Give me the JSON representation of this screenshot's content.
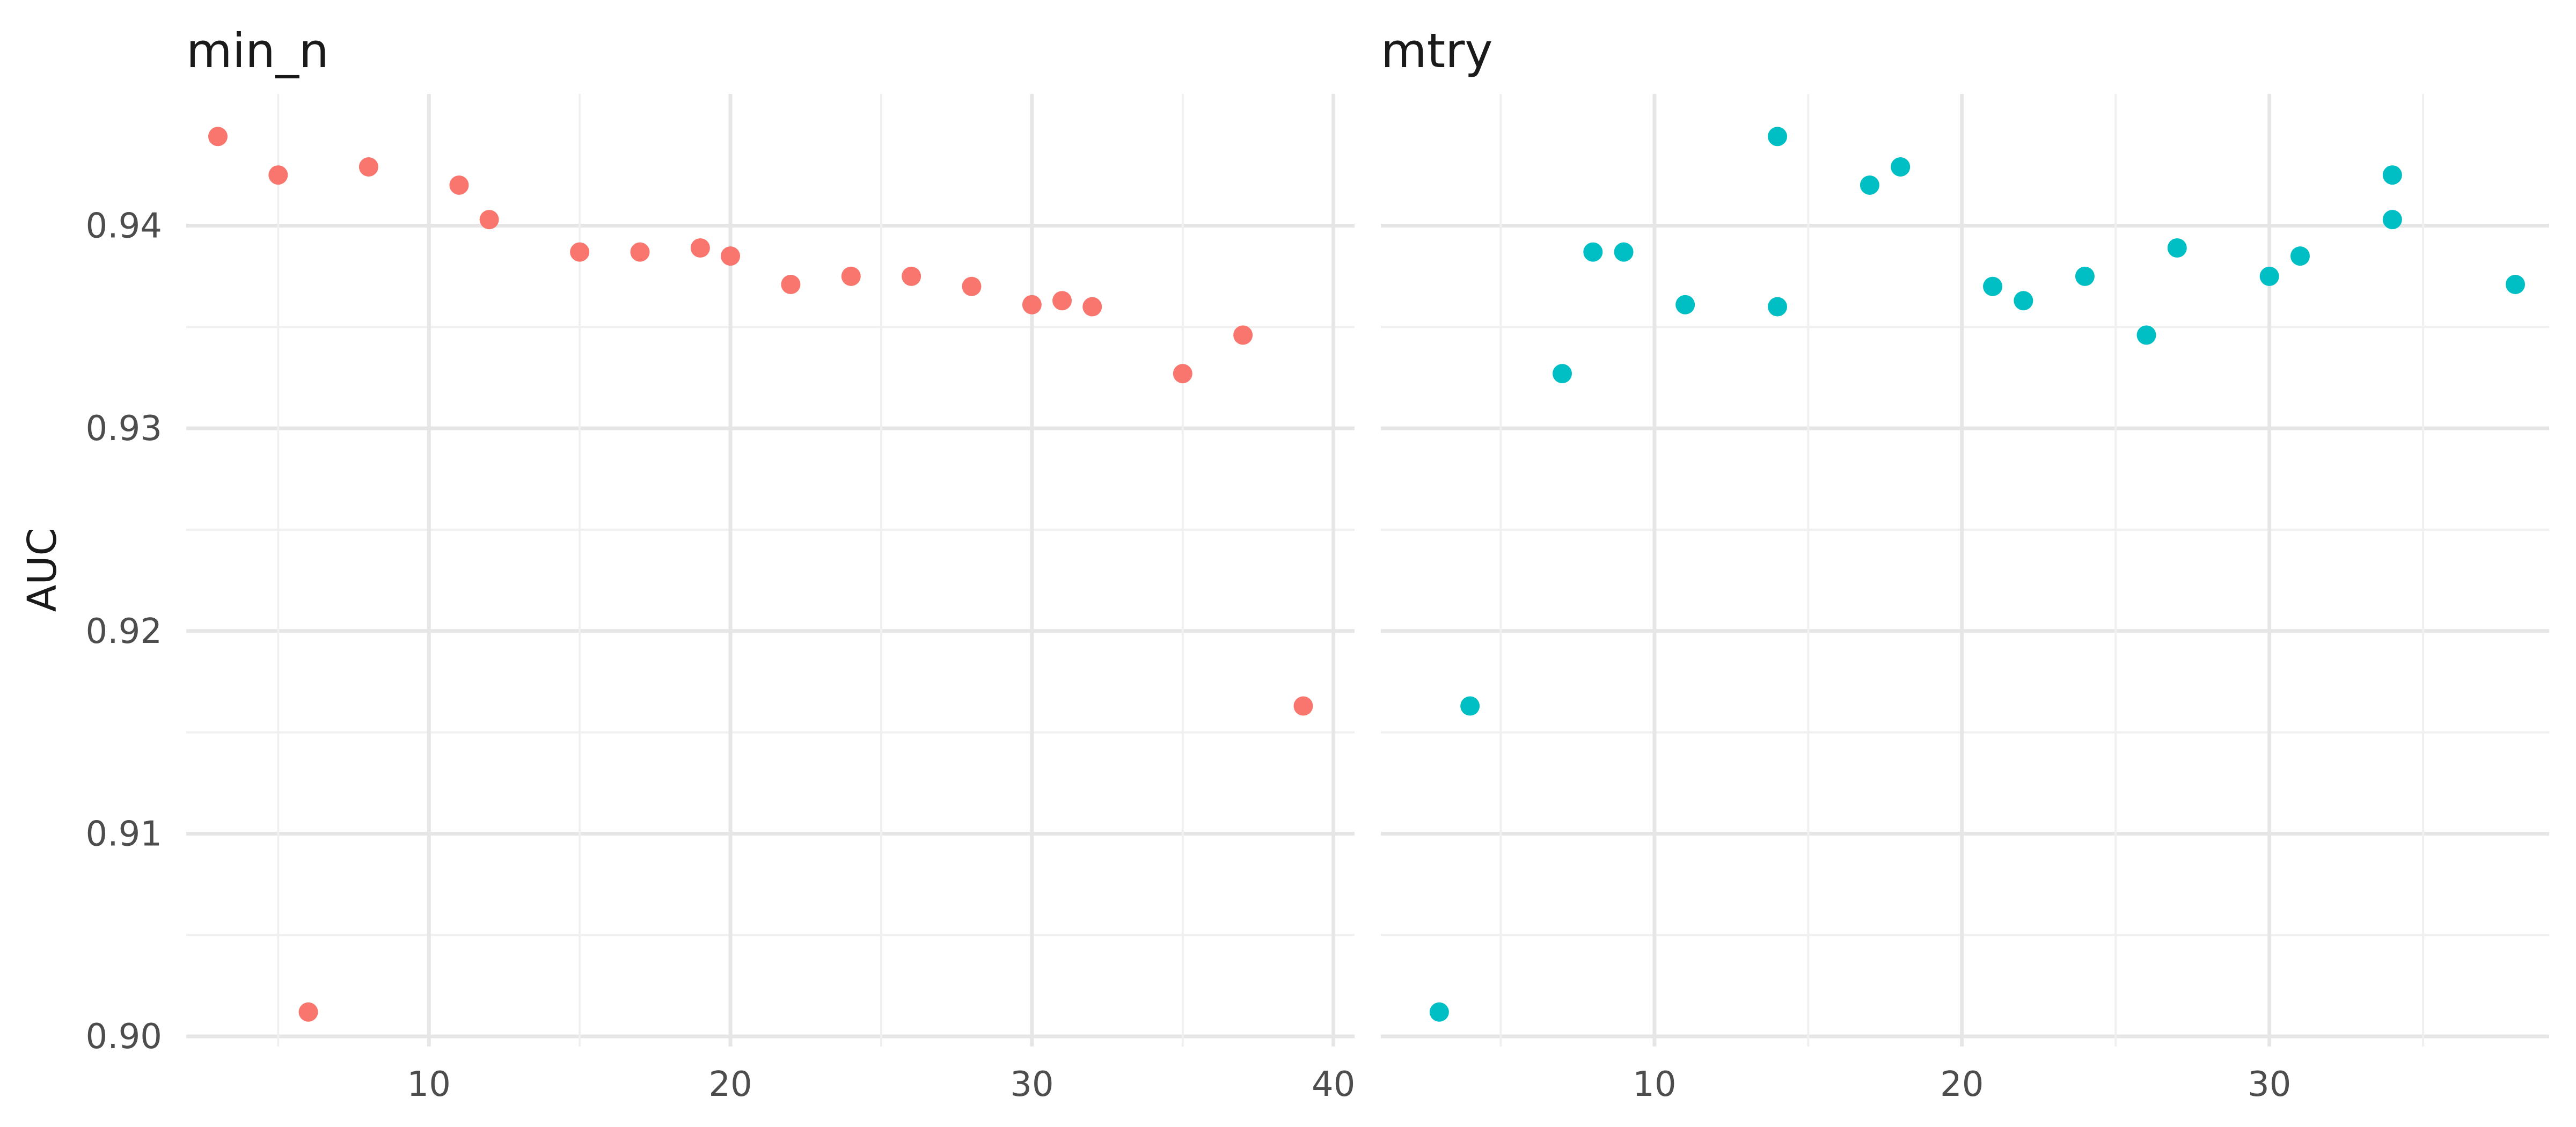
{
  "chart_data": {
    "type": "scatter",
    "y_label": "AUC",
    "y_ticks": [
      "0.90",
      "0.91",
      "0.92",
      "0.93",
      "0.94"
    ],
    "y_range": [
      0.8995,
      0.9465
    ],
    "grid": true,
    "panels": [
      {
        "title": "min_n",
        "color": "#F8766D",
        "x_range": [
          1.95,
          40.7
        ],
        "x_ticks": [
          "10",
          "20",
          "30",
          "40"
        ],
        "points": [
          {
            "x": 3,
            "y": 0.9444
          },
          {
            "x": 5,
            "y": 0.9425
          },
          {
            "x": 6,
            "y": 0.9012
          },
          {
            "x": 8,
            "y": 0.9429
          },
          {
            "x": 11,
            "y": 0.942
          },
          {
            "x": 12,
            "y": 0.9403
          },
          {
            "x": 15,
            "y": 0.9387
          },
          {
            "x": 17,
            "y": 0.9387
          },
          {
            "x": 19,
            "y": 0.9389
          },
          {
            "x": 20,
            "y": 0.9385
          },
          {
            "x": 22,
            "y": 0.9371
          },
          {
            "x": 24,
            "y": 0.9375
          },
          {
            "x": 26,
            "y": 0.9375
          },
          {
            "x": 28,
            "y": 0.937
          },
          {
            "x": 30,
            "y": 0.9361
          },
          {
            "x": 31,
            "y": 0.9363
          },
          {
            "x": 32,
            "y": 0.936
          },
          {
            "x": 35,
            "y": 0.9327
          },
          {
            "x": 37,
            "y": 0.9346
          },
          {
            "x": 39,
            "y": 0.9163
          }
        ]
      },
      {
        "title": "mtry",
        "color": "#00BFC4",
        "x_range": [
          1.1,
          39.1
        ],
        "x_ticks": [
          "10",
          "20",
          "30"
        ],
        "points": [
          {
            "x": 3,
            "y": 0.9012
          },
          {
            "x": 4,
            "y": 0.9163
          },
          {
            "x": 7,
            "y": 0.9327
          },
          {
            "x": 8,
            "y": 0.9387
          },
          {
            "x": 9,
            "y": 0.9387
          },
          {
            "x": 11,
            "y": 0.9361
          },
          {
            "x": 14,
            "y": 0.9444
          },
          {
            "x": 14,
            "y": 0.936
          },
          {
            "x": 17,
            "y": 0.942
          },
          {
            "x": 18,
            "y": 0.9429
          },
          {
            "x": 21,
            "y": 0.937
          },
          {
            "x": 22,
            "y": 0.9363
          },
          {
            "x": 24,
            "y": 0.9375
          },
          {
            "x": 26,
            "y": 0.9346
          },
          {
            "x": 27,
            "y": 0.9389
          },
          {
            "x": 30,
            "y": 0.9375
          },
          {
            "x": 31,
            "y": 0.9385
          },
          {
            "x": 34,
            "y": 0.9425
          },
          {
            "x": 34,
            "y": 0.9403
          },
          {
            "x": 38,
            "y": 0.9371
          }
        ]
      }
    ]
  }
}
